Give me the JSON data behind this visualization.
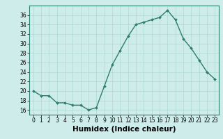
{
  "x": [
    0,
    1,
    2,
    3,
    4,
    5,
    6,
    7,
    8,
    9,
    10,
    11,
    12,
    13,
    14,
    15,
    16,
    17,
    18,
    19,
    20,
    21,
    22,
    23
  ],
  "y": [
    20,
    19,
    19,
    17.5,
    17.5,
    17,
    17,
    16,
    16.5,
    21,
    25.5,
    28.5,
    31.5,
    34,
    34.5,
    35,
    35.5,
    37,
    35,
    31,
    29,
    26.5,
    24,
    22.5
  ],
  "line_color": "#2e7d6e",
  "marker": "D",
  "marker_size": 2.0,
  "bg_color": "#ceecea",
  "grid_color": "#aed8d5",
  "xlabel": "Humidex (Indice chaleur)",
  "ylabel": "",
  "xlim": [
    -0.5,
    23.5
  ],
  "ylim": [
    15,
    38
  ],
  "yticks": [
    16,
    18,
    20,
    22,
    24,
    26,
    28,
    30,
    32,
    34,
    36
  ],
  "xticks": [
    0,
    1,
    2,
    3,
    4,
    5,
    6,
    7,
    8,
    9,
    10,
    11,
    12,
    13,
    14,
    15,
    16,
    17,
    18,
    19,
    20,
    21,
    22,
    23
  ],
  "tick_fontsize": 5.5,
  "xlabel_fontsize": 7.5,
  "line_width": 1.0
}
